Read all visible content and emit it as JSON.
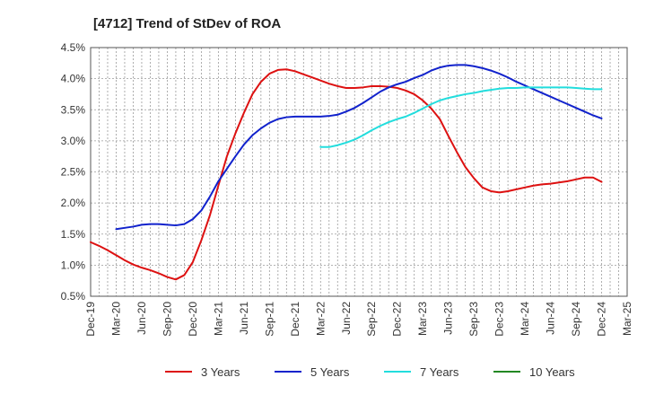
{
  "chart_data": {
    "type": "line",
    "title": "[4712]  Trend of StDev of ROA",
    "xlabel": "",
    "ylabel": "",
    "ylim": [
      0.5,
      4.5
    ],
    "yticks": [
      "0.5%",
      "1.0%",
      "1.5%",
      "2.0%",
      "2.5%",
      "3.0%",
      "3.5%",
      "4.0%",
      "4.5%"
    ],
    "ytick_values": [
      0.5,
      1.0,
      1.5,
      2.0,
      2.5,
      3.0,
      3.5,
      4.0,
      4.5
    ],
    "xticks": [
      "Dec-19",
      "Mar-20",
      "Jun-20",
      "Sep-20",
      "Dec-20",
      "Mar-21",
      "Jun-21",
      "Sep-21",
      "Dec-21",
      "Mar-22",
      "Jun-22",
      "Sep-22",
      "Dec-22",
      "Mar-23",
      "Jun-23",
      "Sep-23",
      "Dec-23",
      "Mar-24",
      "Jun-24",
      "Sep-24",
      "Dec-24",
      "Mar-25"
    ],
    "grid": true,
    "legend_position": "bottom",
    "series": [
      {
        "name": "3 Years",
        "color": "#dd1111",
        "points": [
          [
            "Dec-19",
            1.37
          ],
          [
            "Jan-20",
            1.31
          ],
          [
            "Feb-20",
            1.24
          ],
          [
            "Mar-20",
            1.16
          ],
          [
            "Apr-20",
            1.08
          ],
          [
            "May-20",
            1.01
          ],
          [
            "Jun-20",
            0.96
          ],
          [
            "Jul-20",
            0.92
          ],
          [
            "Aug-20",
            0.87
          ],
          [
            "Sep-20",
            0.81
          ],
          [
            "Oct-20",
            0.77
          ],
          [
            "Nov-20",
            0.84
          ],
          [
            "Dec-20",
            1.05
          ],
          [
            "Jan-21",
            1.4
          ],
          [
            "Feb-21",
            1.8
          ],
          [
            "Mar-21",
            2.28
          ],
          [
            "Apr-21",
            2.75
          ],
          [
            "May-21",
            3.12
          ],
          [
            "Jun-21",
            3.45
          ],
          [
            "Jul-21",
            3.75
          ],
          [
            "Aug-21",
            3.95
          ],
          [
            "Sep-21",
            4.08
          ],
          [
            "Oct-21",
            4.14
          ],
          [
            "Nov-21",
            4.15
          ],
          [
            "Dec-21",
            4.12
          ],
          [
            "Jan-22",
            4.07
          ],
          [
            "Feb-22",
            4.02
          ],
          [
            "Mar-22",
            3.97
          ],
          [
            "Apr-22",
            3.92
          ],
          [
            "May-22",
            3.88
          ],
          [
            "Jun-22",
            3.85
          ],
          [
            "Jul-22",
            3.85
          ],
          [
            "Aug-22",
            3.86
          ],
          [
            "Sep-22",
            3.88
          ],
          [
            "Oct-22",
            3.88
          ],
          [
            "Nov-22",
            3.87
          ],
          [
            "Dec-22",
            3.85
          ],
          [
            "Jan-23",
            3.81
          ],
          [
            "Feb-23",
            3.75
          ],
          [
            "Mar-23",
            3.65
          ],
          [
            "Apr-23",
            3.52
          ],
          [
            "May-23",
            3.35
          ],
          [
            "Jun-23",
            3.08
          ],
          [
            "Jul-23",
            2.82
          ],
          [
            "Aug-23",
            2.58
          ],
          [
            "Sep-23",
            2.4
          ],
          [
            "Oct-23",
            2.25
          ],
          [
            "Nov-23",
            2.19
          ],
          [
            "Dec-23",
            2.17
          ],
          [
            "Jan-24",
            2.19
          ],
          [
            "Feb-24",
            2.22
          ],
          [
            "Mar-24",
            2.25
          ],
          [
            "Apr-24",
            2.28
          ],
          [
            "May-24",
            2.3
          ],
          [
            "Jun-24",
            2.31
          ],
          [
            "Jul-24",
            2.33
          ],
          [
            "Aug-24",
            2.35
          ],
          [
            "Sep-24",
            2.38
          ],
          [
            "Oct-24",
            2.41
          ],
          [
            "Nov-24",
            2.41
          ],
          [
            "Dec-24",
            2.34
          ]
        ]
      },
      {
        "name": "5 Years",
        "color": "#1122cc",
        "points": [
          [
            "Mar-20",
            1.58
          ],
          [
            "Apr-20",
            1.6
          ],
          [
            "May-20",
            1.62
          ],
          [
            "Jun-20",
            1.65
          ],
          [
            "Jul-20",
            1.66
          ],
          [
            "Aug-20",
            1.66
          ],
          [
            "Sep-20",
            1.65
          ],
          [
            "Oct-20",
            1.64
          ],
          [
            "Nov-20",
            1.66
          ],
          [
            "Dec-20",
            1.74
          ],
          [
            "Jan-21",
            1.88
          ],
          [
            "Feb-21",
            2.1
          ],
          [
            "Mar-21",
            2.35
          ],
          [
            "Apr-21",
            2.55
          ],
          [
            "May-21",
            2.75
          ],
          [
            "Jun-21",
            2.94
          ],
          [
            "Jul-21",
            3.09
          ],
          [
            "Aug-21",
            3.2
          ],
          [
            "Sep-21",
            3.29
          ],
          [
            "Oct-21",
            3.35
          ],
          [
            "Nov-21",
            3.38
          ],
          [
            "Dec-21",
            3.39
          ],
          [
            "Jan-22",
            3.39
          ],
          [
            "Feb-22",
            3.39
          ],
          [
            "Mar-22",
            3.39
          ],
          [
            "Apr-22",
            3.4
          ],
          [
            "May-22",
            3.42
          ],
          [
            "Jun-22",
            3.47
          ],
          [
            "Jul-22",
            3.53
          ],
          [
            "Aug-22",
            3.61
          ],
          [
            "Sep-22",
            3.7
          ],
          [
            "Oct-22",
            3.79
          ],
          [
            "Nov-22",
            3.86
          ],
          [
            "Dec-22",
            3.91
          ],
          [
            "Jan-23",
            3.95
          ],
          [
            "Feb-23",
            4.01
          ],
          [
            "Mar-23",
            4.06
          ],
          [
            "Apr-23",
            4.13
          ],
          [
            "May-23",
            4.18
          ],
          [
            "Jun-23",
            4.21
          ],
          [
            "Jul-23",
            4.22
          ],
          [
            "Aug-23",
            4.22
          ],
          [
            "Sep-23",
            4.2
          ],
          [
            "Oct-23",
            4.17
          ],
          [
            "Nov-23",
            4.13
          ],
          [
            "Dec-23",
            4.08
          ],
          [
            "Jan-24",
            4.02
          ],
          [
            "Feb-24",
            3.95
          ],
          [
            "Mar-24",
            3.89
          ],
          [
            "Apr-24",
            3.83
          ],
          [
            "May-24",
            3.77
          ],
          [
            "Jun-24",
            3.71
          ],
          [
            "Jul-24",
            3.65
          ],
          [
            "Aug-24",
            3.59
          ],
          [
            "Sep-24",
            3.53
          ],
          [
            "Oct-24",
            3.47
          ],
          [
            "Nov-24",
            3.41
          ],
          [
            "Dec-24",
            3.36
          ]
        ]
      },
      {
        "name": "7 Years",
        "color": "#22dddd",
        "points": [
          [
            "Mar-22",
            2.9
          ],
          [
            "Apr-22",
            2.9
          ],
          [
            "May-22",
            2.93
          ],
          [
            "Jun-22",
            2.97
          ],
          [
            "Jul-22",
            3.02
          ],
          [
            "Aug-22",
            3.09
          ],
          [
            "Sep-22",
            3.17
          ],
          [
            "Oct-22",
            3.24
          ],
          [
            "Nov-22",
            3.3
          ],
          [
            "Dec-22",
            3.35
          ],
          [
            "Jan-23",
            3.39
          ],
          [
            "Feb-23",
            3.45
          ],
          [
            "Mar-23",
            3.52
          ],
          [
            "Apr-23",
            3.59
          ],
          [
            "May-23",
            3.65
          ],
          [
            "Jun-23",
            3.69
          ],
          [
            "Jul-23",
            3.72
          ],
          [
            "Aug-23",
            3.75
          ],
          [
            "Sep-23",
            3.77
          ],
          [
            "Oct-23",
            3.8
          ],
          [
            "Nov-23",
            3.82
          ],
          [
            "Dec-23",
            3.84
          ],
          [
            "Jan-24",
            3.85
          ],
          [
            "Feb-24",
            3.85
          ],
          [
            "Mar-24",
            3.86
          ],
          [
            "Apr-24",
            3.86
          ],
          [
            "May-24",
            3.86
          ],
          [
            "Jun-24",
            3.86
          ],
          [
            "Jul-24",
            3.86
          ],
          [
            "Aug-24",
            3.86
          ],
          [
            "Sep-24",
            3.85
          ],
          [
            "Oct-24",
            3.84
          ],
          [
            "Nov-24",
            3.83
          ],
          [
            "Dec-24",
            3.83
          ]
        ]
      },
      {
        "name": "10 Years",
        "color": "#228822",
        "points": []
      }
    ]
  }
}
